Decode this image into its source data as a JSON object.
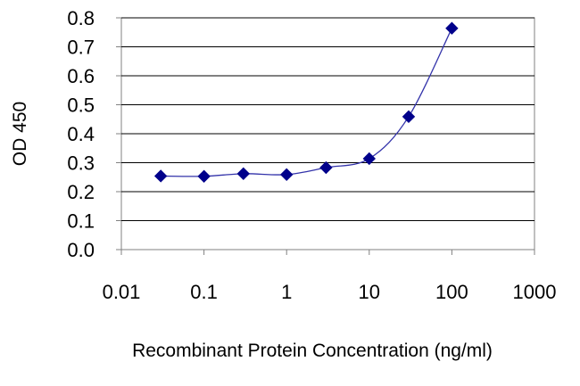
{
  "chart_data": {
    "type": "line",
    "title": "",
    "xlabel": "Recombinant Protein Concentration (ng/ml)",
    "ylabel": "OD 450",
    "x_scale": "log",
    "xlim": [
      0.01,
      1000
    ],
    "ylim": [
      0.0,
      0.8
    ],
    "x_ticks": [
      "0.01",
      "0.1",
      "1",
      "10",
      "100",
      "1000"
    ],
    "y_ticks": [
      "0.0",
      "0.1",
      "0.2",
      "0.3",
      "0.4",
      "0.5",
      "0.6",
      "0.7",
      "0.8"
    ],
    "grid": "horizontal",
    "legend": "none",
    "marker": "diamond",
    "color": "#00008B",
    "series": [
      {
        "x": [
          0.03,
          0.1,
          0.3,
          1,
          3,
          10,
          30,
          100
        ],
        "y": [
          0.254,
          0.253,
          0.262,
          0.259,
          0.283,
          0.314,
          0.459,
          0.764
        ]
      }
    ]
  }
}
